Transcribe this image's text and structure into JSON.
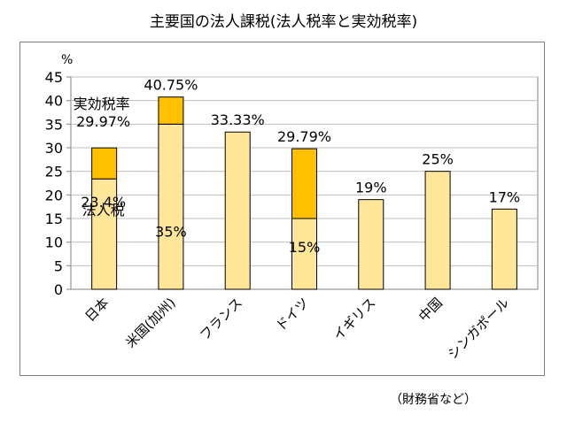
{
  "chart_data": {
    "type": "bar",
    "title": "主要国の法人課税(法人税率と実効税率)",
    "source": "（財務省など）",
    "ylabel": "%",
    "ylim": [
      0,
      45
    ],
    "yticks": [
      0,
      5,
      10,
      15,
      20,
      25,
      30,
      35,
      40,
      45
    ],
    "grid": true,
    "categories": [
      "日本",
      "米国(加州)",
      "フランス",
      "ドイツ",
      "イギリス",
      "中国",
      "シンガポール"
    ],
    "series": [
      {
        "name": "法人税",
        "values": [
          23.4,
          35,
          33.33,
          15,
          19,
          25,
          17
        ],
        "color": "#ffe699"
      },
      {
        "name": "実効税率",
        "values": [
          29.97,
          40.75,
          33.33,
          29.79,
          19,
          25,
          17
        ],
        "color": "#ffc000"
      }
    ],
    "data_labels": [
      "29.97%",
      "40.75%",
      "33.33%",
      "29.79%",
      "19%",
      "25%",
      "17%"
    ],
    "inner_labels": [
      "23.4%",
      "35%",
      "",
      "15%",
      "",
      "",
      ""
    ],
    "annotations": {
      "effective_label": "実効税率",
      "corporate_label": "法人税"
    }
  }
}
